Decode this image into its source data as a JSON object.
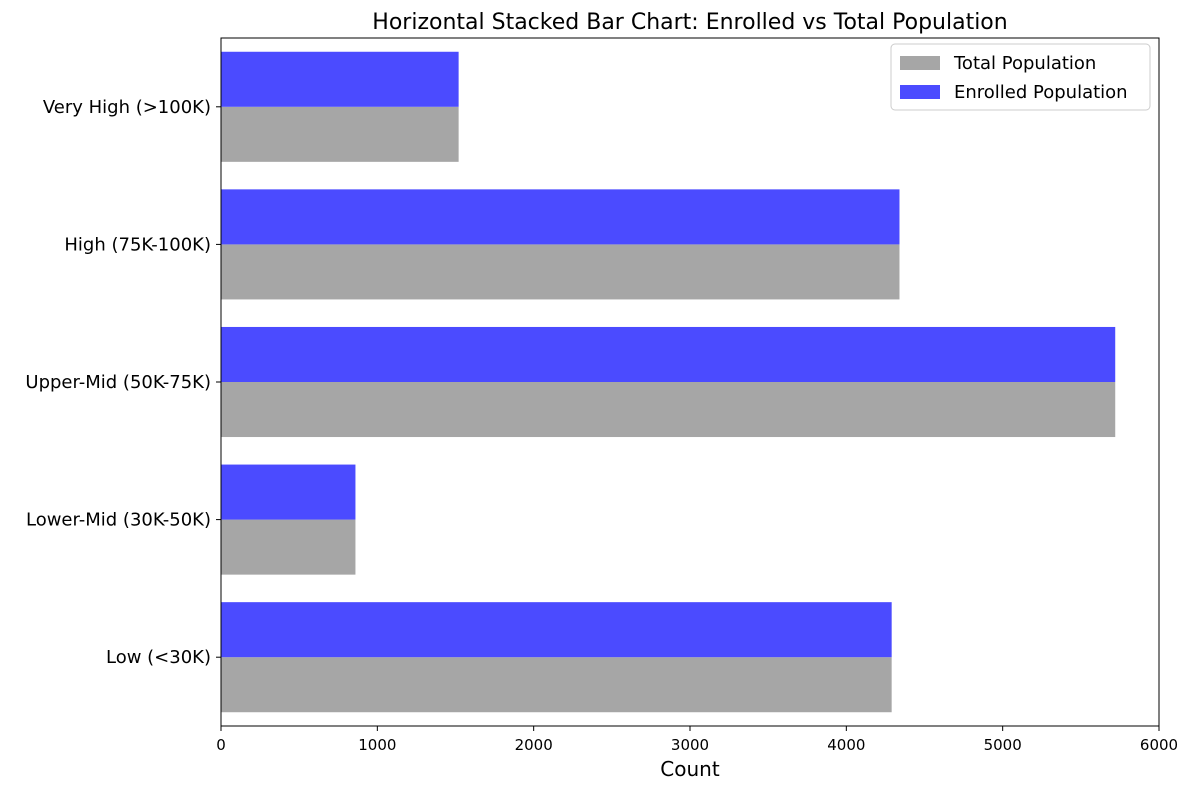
{
  "chart_data": {
    "type": "bar",
    "orientation": "horizontal",
    "title": "Horizontal Stacked Bar Chart: Enrolled vs Total Population",
    "xlabel": "Count",
    "ylabel": "",
    "xlim": [
      0,
      6000
    ],
    "xticks": [
      0,
      1000,
      2000,
      3000,
      4000,
      5000,
      6000
    ],
    "categories": [
      "Low (<30K)",
      "Lower-Mid (30K-50K)",
      "Upper-Mid (50K-75K)",
      "High (75K-100K)",
      "Very High (>100K)"
    ],
    "series": [
      {
        "name": "Total Population",
        "color": "#a6a6a6",
        "values": [
          4290,
          860,
          5720,
          4340,
          1520
        ]
      },
      {
        "name": "Enrolled Population",
        "color": "#4b4bff",
        "values": [
          4290,
          860,
          5720,
          4340,
          1520
        ]
      }
    ],
    "legend_position": "top-right",
    "grid": false
  }
}
